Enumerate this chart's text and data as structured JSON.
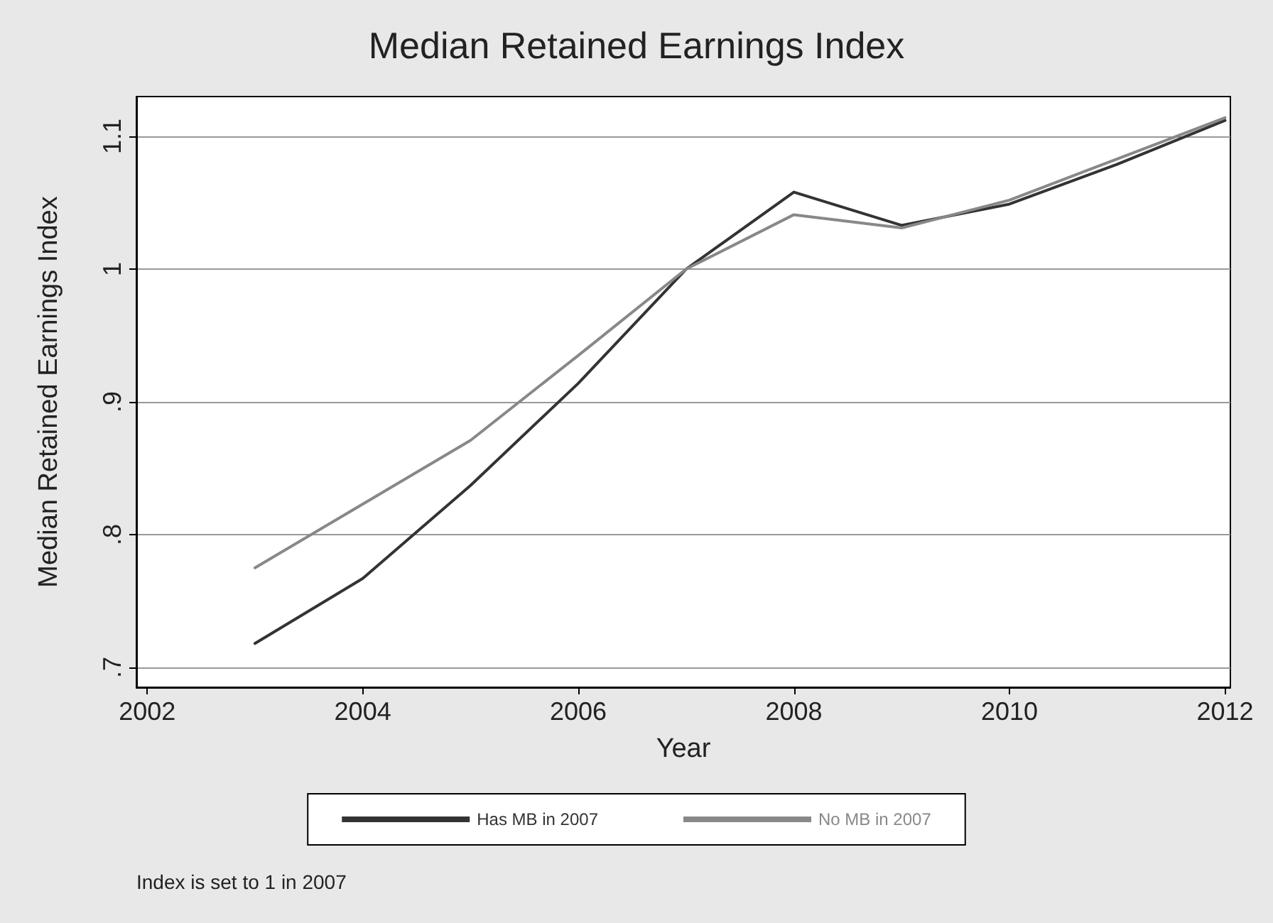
{
  "chart_data": {
    "type": "line",
    "title": "Median Retained Earnings Index",
    "xlabel": "Year",
    "ylabel": "Median Retained Earnings Index",
    "annotations": [
      "Index is set to 1 in 2007"
    ],
    "x": [
      2003,
      2004,
      2005,
      2006,
      2007,
      2008,
      2009,
      2010,
      2011,
      2012
    ],
    "series": [
      {
        "name": "Has MB in 2007",
        "color": "#333333",
        "values": [
          0.718,
          0.767,
          0.837,
          0.914,
          1.0,
          1.058,
          1.033,
          1.049,
          1.079,
          1.112
        ]
      },
      {
        "name": "No MB in 2007",
        "color": "#888888",
        "values": [
          0.775,
          0.823,
          0.871,
          0.935,
          1.0,
          1.041,
          1.031,
          1.052,
          1.083,
          1.114
        ]
      }
    ],
    "xlim": [
      2001.9,
      2012.05
    ],
    "xticks": [
      2002,
      2004,
      2006,
      2008,
      2010,
      2012
    ],
    "ylim": [
      0.685,
      1.13
    ],
    "yticks": [
      {
        "value": 0.7,
        "label": ".7"
      },
      {
        "value": 0.8,
        "label": ".8"
      },
      {
        "value": 0.9,
        "label": ".9"
      },
      {
        "value": 1,
        "label": "1"
      },
      {
        "value": 1.1,
        "label": "1.1"
      }
    ],
    "grid": "y",
    "legend": "bottom",
    "marker": "none",
    "line_style": "solid"
  }
}
